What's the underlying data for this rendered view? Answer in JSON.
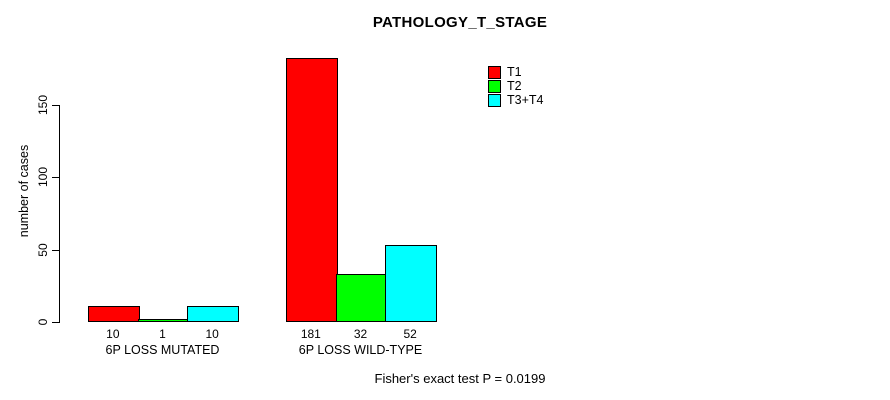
{
  "chart_data": {
    "type": "bar",
    "title": "PATHOLOGY_T_STAGE",
    "ylabel": "number of cases",
    "xlabel": "",
    "ylim": [
      0,
      150
    ],
    "yticks": [
      0,
      50,
      100,
      150
    ],
    "categories": [
      "6P LOSS MUTATED",
      "6P LOSS WILD-TYPE"
    ],
    "series": [
      {
        "name": "T1",
        "color": "#ff0000",
        "values": [
          10,
          181
        ]
      },
      {
        "name": "T2",
        "color": "#00ff00",
        "values": [
          1,
          32
        ]
      },
      {
        "name": "T3+T4",
        "color": "#00ffff",
        "values": [
          10,
          52
        ]
      }
    ],
    "bar_value_labels": [
      [
        "10",
        "1",
        "10"
      ],
      [
        "181",
        "32",
        "52"
      ]
    ],
    "legend_position": "top-right",
    "legend_entries": [
      "T1",
      "T2",
      "T3+T4"
    ],
    "grid": false,
    "annotation": "Fisher's exact test P = 0.0199",
    "axis_color": "#000000",
    "text_color": "#000000",
    "background_color": "#ffffff"
  }
}
